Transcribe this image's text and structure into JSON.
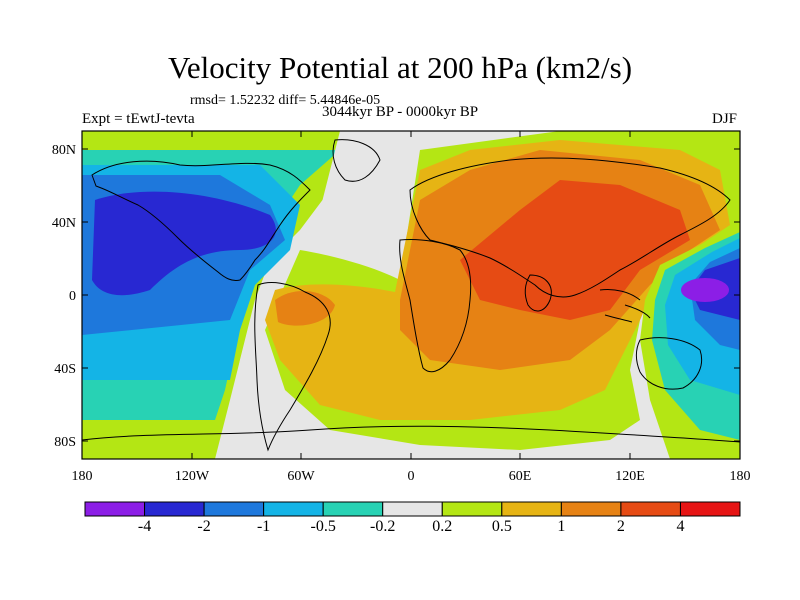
{
  "title": "Velocity Potential at 200 hPa (km2/s)",
  "stats_line": "rmsd= 1.52232 diff= 5.44846e-05",
  "experiment_label": "Expt = tEwtJ-tevta",
  "period_label": "3044kyr BP - 0000kyr BP",
  "season_label": "DJF",
  "map": {
    "projection": "cylindrical-equidistant",
    "lon_range": [
      -180,
      180
    ],
    "lat_range": [
      -90,
      90
    ],
    "y_ticks": [
      "80N",
      "40N",
      "0",
      "40S",
      "80S"
    ],
    "x_ticks": [
      "180",
      "120W",
      "60W",
      "0",
      "60E",
      "120E",
      "180"
    ]
  },
  "colorbar": {
    "labels": [
      "-4",
      "-2",
      "-1",
      "-0.5",
      "-0.2",
      "0.2",
      "0.5",
      "1",
      "2",
      "4"
    ],
    "colors": [
      "#8c1ee6",
      "#2828d2",
      "#1e78dc",
      "#14b4e6",
      "#28d2b4",
      "#e6e6e6",
      "#b4e614",
      "#e6b414",
      "#e68214",
      "#e64b14",
      "#e61414"
    ]
  }
}
